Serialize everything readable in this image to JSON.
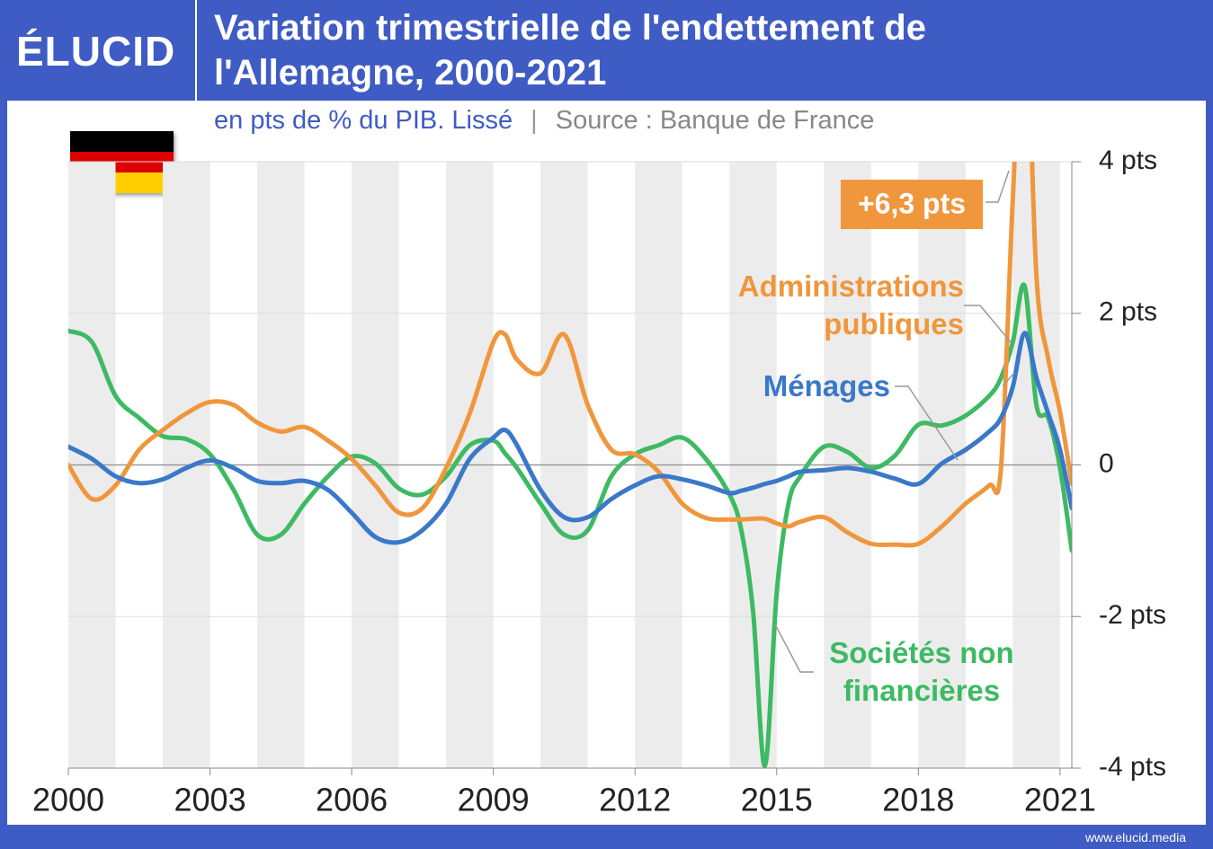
{
  "brand": "ÉLUCID",
  "footer": "www.elucid.media",
  "chart_data": {
    "type": "line",
    "title": "Variation trimestrielle de l'endettement de l'Allemagne, 2000-2021",
    "subtitle": "en pts de % du PIB. Lissé",
    "source": "Source : Banque de France",
    "annotation": "+6,3 pts",
    "x": [
      2000,
      2000.5,
      2001,
      2001.5,
      2002,
      2002.5,
      2003,
      2003.5,
      2004,
      2004.5,
      2005,
      2005.5,
      2006,
      2006.5,
      2007,
      2007.5,
      2008,
      2008.5,
      2009,
      2009.25,
      2009.5,
      2010,
      2010.5,
      2011,
      2011.5,
      2012,
      2012.5,
      2013,
      2013.5,
      2014,
      2014.25,
      2014.5,
      2014.75,
      2015,
      2015.25,
      2015.5,
      2016,
      2016.5,
      2017,
      2017.5,
      2018,
      2018.5,
      2019,
      2019.5,
      2019.75,
      2020,
      2020.25,
      2020.5,
      2020.75,
      2021,
      2021.25
    ],
    "series": [
      {
        "name": "Sociétés non financières",
        "color": "#3dba62",
        "values": [
          1.77,
          1.62,
          0.91,
          0.62,
          0.38,
          0.34,
          0.14,
          -0.33,
          -0.92,
          -0.92,
          -0.51,
          -0.15,
          0.11,
          0.02,
          -0.31,
          -0.39,
          -0.15,
          0.26,
          0.32,
          0.15,
          -0.04,
          -0.51,
          -0.92,
          -0.86,
          -0.15,
          0.14,
          0.26,
          0.36,
          0.08,
          -0.39,
          -0.86,
          -1.93,
          -3.97,
          -1.69,
          -0.51,
          -0.15,
          0.24,
          0.17,
          -0.04,
          0.12,
          0.53,
          0.52,
          0.65,
          0.91,
          1.15,
          1.62,
          2.36,
          0.79,
          0.62,
          -0.04,
          -1.13
        ]
      },
      {
        "name": "Administrations publiques",
        "color": "#f0963c",
        "values": [
          0,
          -0.45,
          -0.27,
          0.2,
          0.46,
          0.68,
          0.83,
          0.79,
          0.56,
          0.44,
          0.5,
          0.32,
          0.08,
          -0.27,
          -0.63,
          -0.57,
          -0.04,
          0.68,
          1.62,
          1.72,
          1.39,
          1.21,
          1.72,
          0.79,
          0.2,
          0.14,
          -0.09,
          -0.51,
          -0.7,
          -0.72,
          -0.72,
          -0.71,
          -0.71,
          -0.77,
          -0.81,
          -0.75,
          -0.69,
          -0.89,
          -1.04,
          -1.05,
          -1.04,
          -0.81,
          -0.51,
          -0.27,
          -0.04,
          3.5,
          6.3,
          2.5,
          1.4,
          0.7,
          -0.25
        ]
      },
      {
        "name": "Ménages",
        "color": "#3a78c9",
        "values": [
          0.24,
          0.08,
          -0.15,
          -0.24,
          -0.19,
          -0.04,
          0.06,
          -0.04,
          -0.21,
          -0.24,
          -0.21,
          -0.33,
          -0.63,
          -0.95,
          -1.02,
          -0.86,
          -0.51,
          0.08,
          0.36,
          0.46,
          0.26,
          -0.33,
          -0.69,
          -0.69,
          -0.45,
          -0.27,
          -0.15,
          -0.19,
          -0.27,
          -0.37,
          -0.34,
          -0.3,
          -0.25,
          -0.21,
          -0.15,
          -0.09,
          -0.07,
          -0.04,
          -0.09,
          -0.18,
          -0.25,
          0.02,
          0.2,
          0.44,
          0.62,
          1.03,
          1.74,
          1.15,
          0.68,
          0.2,
          -0.57
        ]
      }
    ],
    "xlim": [
      2000,
      2021.25
    ],
    "xticks": [
      2000,
      2003,
      2006,
      2009,
      2012,
      2015,
      2018,
      2021
    ],
    "ylim": [
      -4,
      4
    ],
    "yticks": [
      {
        "value": 4,
        "label": "4 pts"
      },
      {
        "value": 2,
        "label": "2 pts"
      },
      0,
      {
        "value": -2,
        "label": "-2 pts"
      },
      {
        "value": -4,
        "label": "-4 pts"
      }
    ],
    "grid": true,
    "stripes": true
  }
}
